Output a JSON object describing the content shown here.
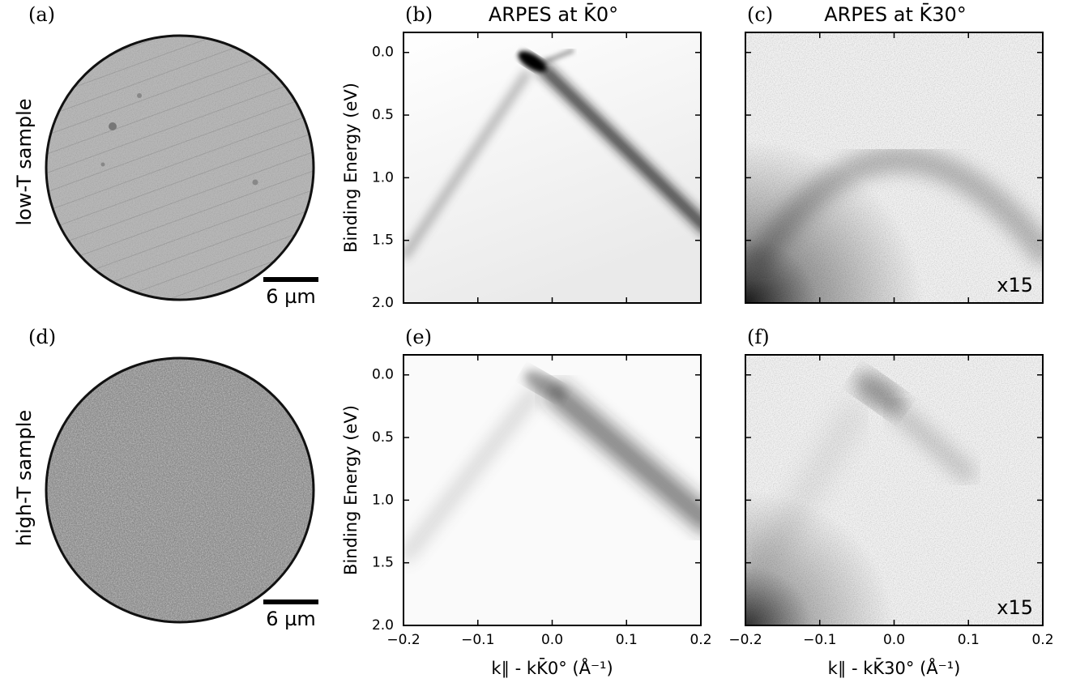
{
  "row_labels": [
    "low-T sample",
    "high-T sample"
  ],
  "images": [
    {
      "label": "(a)",
      "scale_bar": "6 µm"
    },
    {
      "label": "(d)",
      "scale_bar": "6 µm"
    }
  ],
  "plots": [
    {
      "label": "(b)",
      "title": "ARPES at K̄0°",
      "ylabel": "Binding Energy (eV)"
    },
    {
      "label": "(c)",
      "title": "ARPES at K̄30°",
      "annotation": "x15"
    },
    {
      "label": "(e)",
      "ylabel": "Binding Energy (eV)",
      "xlabel": "k∥ - kK̄0° (Å⁻¹)"
    },
    {
      "label": "(f)",
      "annotation": "x15",
      "xlabel": "k∥ - kK̄30° (Å⁻¹)"
    }
  ],
  "xlim": [
    -0.2,
    0.2
  ],
  "ylim": [
    2.0,
    -0.16
  ],
  "xticks": [
    {
      "value": -0.2,
      "label": "−0.2"
    },
    {
      "value": -0.1,
      "label": "−0.1"
    },
    {
      "value": 0,
      "label": "0.0"
    },
    0.1,
    0.2
  ],
  "yticks": [
    {
      "value": 0,
      "label": "0.0"
    },
    0.5,
    {
      "value": 1,
      "label": "1.0"
    },
    1.5,
    {
      "value": 2,
      "label": "2.0"
    }
  ]
}
